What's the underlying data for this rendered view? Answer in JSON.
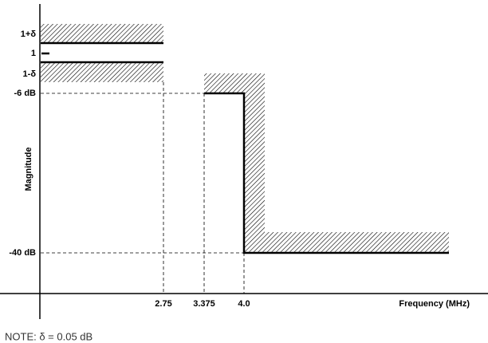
{
  "y_labels": [
    "1+δ",
    "1",
    "1-δ",
    "-6 dB",
    "-40 dB"
  ],
  "y_axis_title": "Magnitude",
  "x_labels": [
    "2.75",
    "3.375",
    "4.0"
  ],
  "x_axis_title": "Frequency (MHz)",
  "note": "NOTE: δ = 0.05 dB"
}
